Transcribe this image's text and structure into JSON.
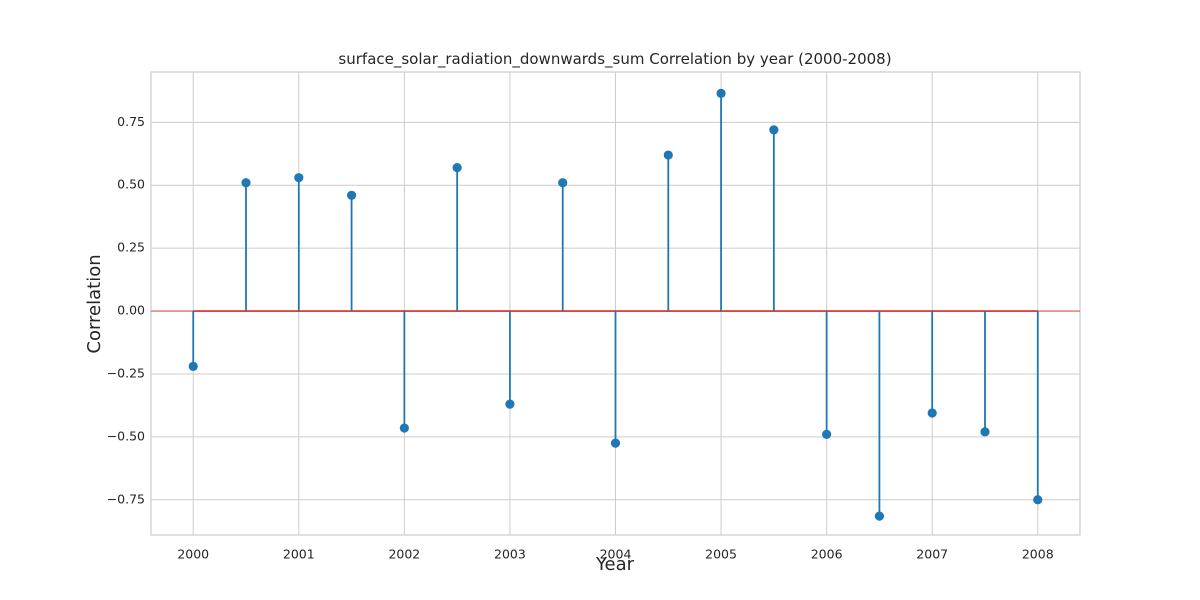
{
  "chart_data": {
    "type": "stem",
    "title": "surface_solar_radiation_downwards_sum Correlation by year (2000-2008)",
    "xlabel": "Year",
    "ylabel": "Correlation",
    "x": [
      2000,
      2000.5,
      2001,
      2001.5,
      2002,
      2002.5,
      2003,
      2003.5,
      2004,
      2004.5,
      2005,
      2005.5,
      2006,
      2006.5,
      2007,
      2007.5,
      2008
    ],
    "values": [
      -0.22,
      0.51,
      0.53,
      0.46,
      -0.465,
      0.57,
      -0.37,
      0.51,
      -0.525,
      0.62,
      0.865,
      0.72,
      -0.49,
      -0.815,
      -0.405,
      -0.48,
      -0.75
    ],
    "xticks": [
      2000,
      2001,
      2002,
      2003,
      2004,
      2005,
      2006,
      2007,
      2008
    ],
    "xtick_labels": [
      "2000",
      "2001",
      "2002",
      "2003",
      "2004",
      "2005",
      "2006",
      "2007",
      "2008"
    ],
    "yticks": [
      -0.75,
      -0.5,
      -0.25,
      0.0,
      0.25,
      0.5,
      0.75
    ],
    "ytick_labels": [
      "−0.75",
      "−0.50",
      "−0.25",
      "0.00",
      "0.25",
      "0.50",
      "0.75"
    ],
    "xlim": [
      1999.6,
      2008.4
    ],
    "ylim": [
      -0.89,
      0.95
    ],
    "baseline": 0,
    "grid": true,
    "colors": {
      "stem": "#1f77b4",
      "marker": "#1f77b4",
      "baseline": "#d62728",
      "grid": "#cccccc",
      "frame": "#cccccc"
    }
  }
}
